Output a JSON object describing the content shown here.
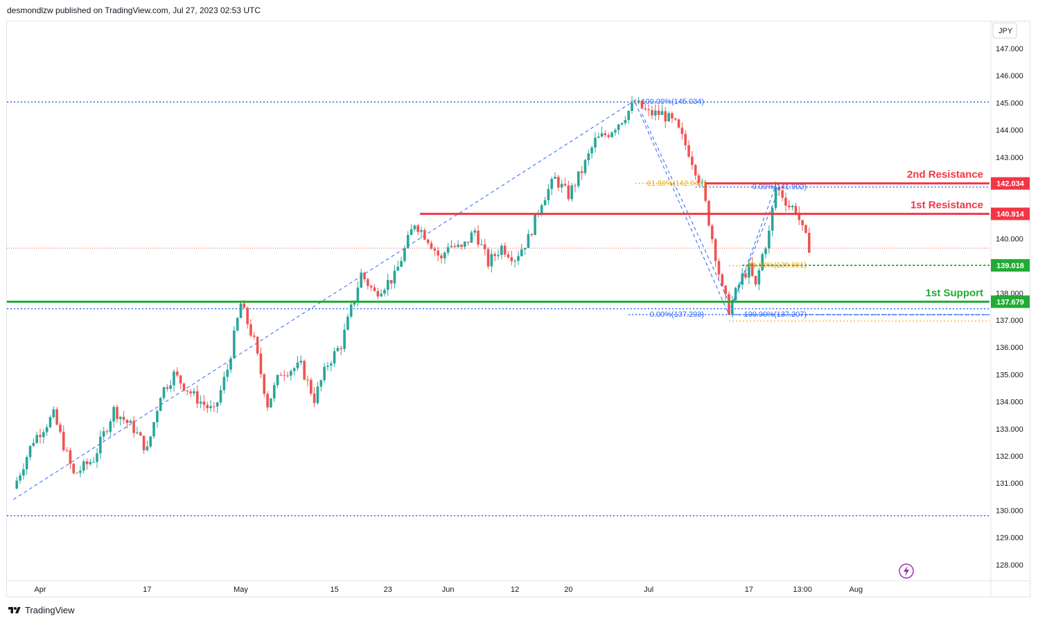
{
  "header": {
    "attribution": "desmondlzw published on TradingView.com, Jul 27, 2023 02:53 UTC"
  },
  "footer": {
    "brand": "TradingView"
  },
  "colors": {
    "up": "#26a69a",
    "down": "#ef5350",
    "resistance": "#f23645",
    "support": "#22ab35",
    "fib_blue": "#2962ff",
    "fib_orange": "#f7a600",
    "axis_text": "#131722",
    "grid_border": "#e0e3eb"
  },
  "chart_data": {
    "type": "candlestick",
    "symbol_currency": "JPY",
    "ylim": [
      127.6,
      147.6
    ],
    "y_ticks": [
      "147.000",
      "146.000",
      "145.000",
      "144.000",
      "143.000",
      "142.000",
      "141.000",
      "140.000",
      "139.000",
      "138.000",
      "137.000",
      "136.000",
      "135.000",
      "134.000",
      "133.000",
      "132.000",
      "131.000",
      "130.000",
      "129.000",
      "128.000"
    ],
    "x_ticks": [
      {
        "label": "Apr",
        "day": 1
      },
      {
        "label": "17",
        "day": 17
      },
      {
        "label": "May",
        "day": 31
      },
      {
        "label": "15",
        "day": 45
      },
      {
        "label": "23",
        "day": 53
      },
      {
        "label": "Jun",
        "day": 62
      },
      {
        "label": "12",
        "day": 72
      },
      {
        "label": "20",
        "day": 80
      },
      {
        "label": "Jul",
        "day": 92
      },
      {
        "label": "17",
        "day": 107
      },
      {
        "label": "13:00",
        "day": 115
      },
      {
        "label": "Aug",
        "day": 123
      }
    ],
    "x_range_days": [
      -3,
      131
    ],
    "price_path": [
      [
        -3,
        130.8
      ],
      [
        0,
        132.6
      ],
      [
        3,
        133.5
      ],
      [
        6,
        131.3
      ],
      [
        9,
        131.9
      ],
      [
        12,
        133.7
      ],
      [
        15,
        133.0
      ],
      [
        17,
        132.2
      ],
      [
        19,
        134.3
      ],
      [
        21,
        135.0
      ],
      [
        24,
        134.2
      ],
      [
        27,
        133.6
      ],
      [
        29,
        135.2
      ],
      [
        31,
        137.6
      ],
      [
        33,
        136.2
      ],
      [
        35,
        133.9
      ],
      [
        37,
        135.1
      ],
      [
        40,
        135.3
      ],
      [
        42,
        134.1
      ],
      [
        44,
        135.4
      ],
      [
        46,
        136.1
      ],
      [
        49,
        138.7
      ],
      [
        51,
        138.0
      ],
      [
        54,
        138.6
      ],
      [
        57,
        140.6
      ],
      [
        59,
        140.0
      ],
      [
        61,
        139.2
      ],
      [
        62,
        139.8
      ],
      [
        64,
        139.6
      ],
      [
        66,
        140.3
      ],
      [
        68,
        139.1
      ],
      [
        70,
        139.7
      ],
      [
        72,
        139.3
      ],
      [
        74,
        140.0
      ],
      [
        76,
        141.4
      ],
      [
        78,
        142.2
      ],
      [
        80,
        141.6
      ],
      [
        82,
        142.5
      ],
      [
        84,
        143.6
      ],
      [
        86,
        143.9
      ],
      [
        88,
        144.4
      ],
      [
        90,
        145.0
      ],
      [
        92,
        144.6
      ],
      [
        94,
        144.6
      ],
      [
        96,
        144.2
      ],
      [
        98,
        143.2
      ],
      [
        100,
        141.9
      ],
      [
        102,
        139.4
      ],
      [
        103,
        138.1
      ],
      [
        104,
        137.4
      ],
      [
        106,
        138.6
      ],
      [
        107,
        138.9
      ],
      [
        108,
        138.2
      ],
      [
        109,
        139.4
      ],
      [
        110,
        140.2
      ],
      [
        111,
        141.9
      ],
      [
        112,
        141.6
      ],
      [
        113,
        141.2
      ],
      [
        114,
        141.1
      ],
      [
        115,
        140.3
      ],
      [
        116,
        139.7
      ]
    ],
    "series": [
      {
        "name": "1st Resistance",
        "value": 140.914,
        "color": "#f23645",
        "tag": "140.914"
      },
      {
        "name": "2nd Resistance",
        "value": 142.034,
        "color": "#f23645",
        "tag": "142.034"
      },
      {
        "name": "1st Support",
        "value": 137.679,
        "color": "#22ab35",
        "tag": "137.679"
      },
      {
        "name": "",
        "value": 139.018,
        "color": "#22ab35",
        "tag": "139.018"
      }
    ],
    "horizontal_dotted": [
      145.034,
      137.42,
      129.8,
      141.902,
      137.203
    ],
    "fib_labels": [
      {
        "text": "100.00%(145.034)",
        "color": "#2962ff",
        "value": 145.034
      },
      {
        "text": "61.80%(142.042)",
        "color": "#f7a600",
        "value": 142.042
      },
      {
        "text": "0.00%(141.902)",
        "color": "#2962ff",
        "value": 141.902
      },
      {
        "text": "61.80%(139.001)",
        "color": "#f7a600",
        "value": 139.001
      },
      {
        "text": "0.00%(137.203)",
        "color": "#2962ff",
        "value": 137.203
      },
      {
        "text": "100.00%(137.207)",
        "color": "#2962ff",
        "value": 137.207
      }
    ],
    "current_price_line": 139.65
  }
}
